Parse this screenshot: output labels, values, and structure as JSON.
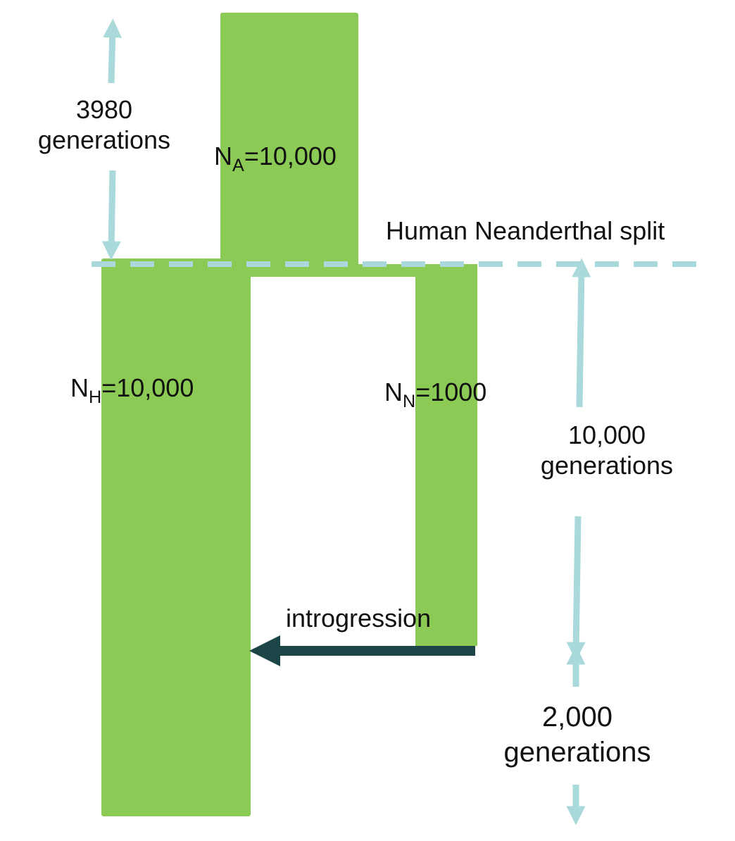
{
  "colors": {
    "population_fill": "#8bcb55",
    "time_arrow": "#a9d9da",
    "introgression_arrow": "#1d4547",
    "split_line": "#a9d9da",
    "text": "#111111"
  },
  "populations": {
    "ancestral": {
      "prefix": "N",
      "subscript": "A",
      "suffix": "=10,000"
    },
    "human": {
      "prefix": "N",
      "subscript": "H",
      "suffix": "=10,000"
    },
    "neanderthal": {
      "prefix": "N",
      "subscript": "N",
      "suffix": "=1000"
    }
  },
  "events": {
    "split_label": "Human Neanderthal split",
    "introgression_label": "introgression"
  },
  "durations": {
    "ancestral": {
      "value": "3980",
      "unit": "generations"
    },
    "split_to_introgression": {
      "value": "10,000",
      "unit": "generations"
    },
    "after_introgression": {
      "value": "2,000",
      "unit": "generations"
    }
  }
}
